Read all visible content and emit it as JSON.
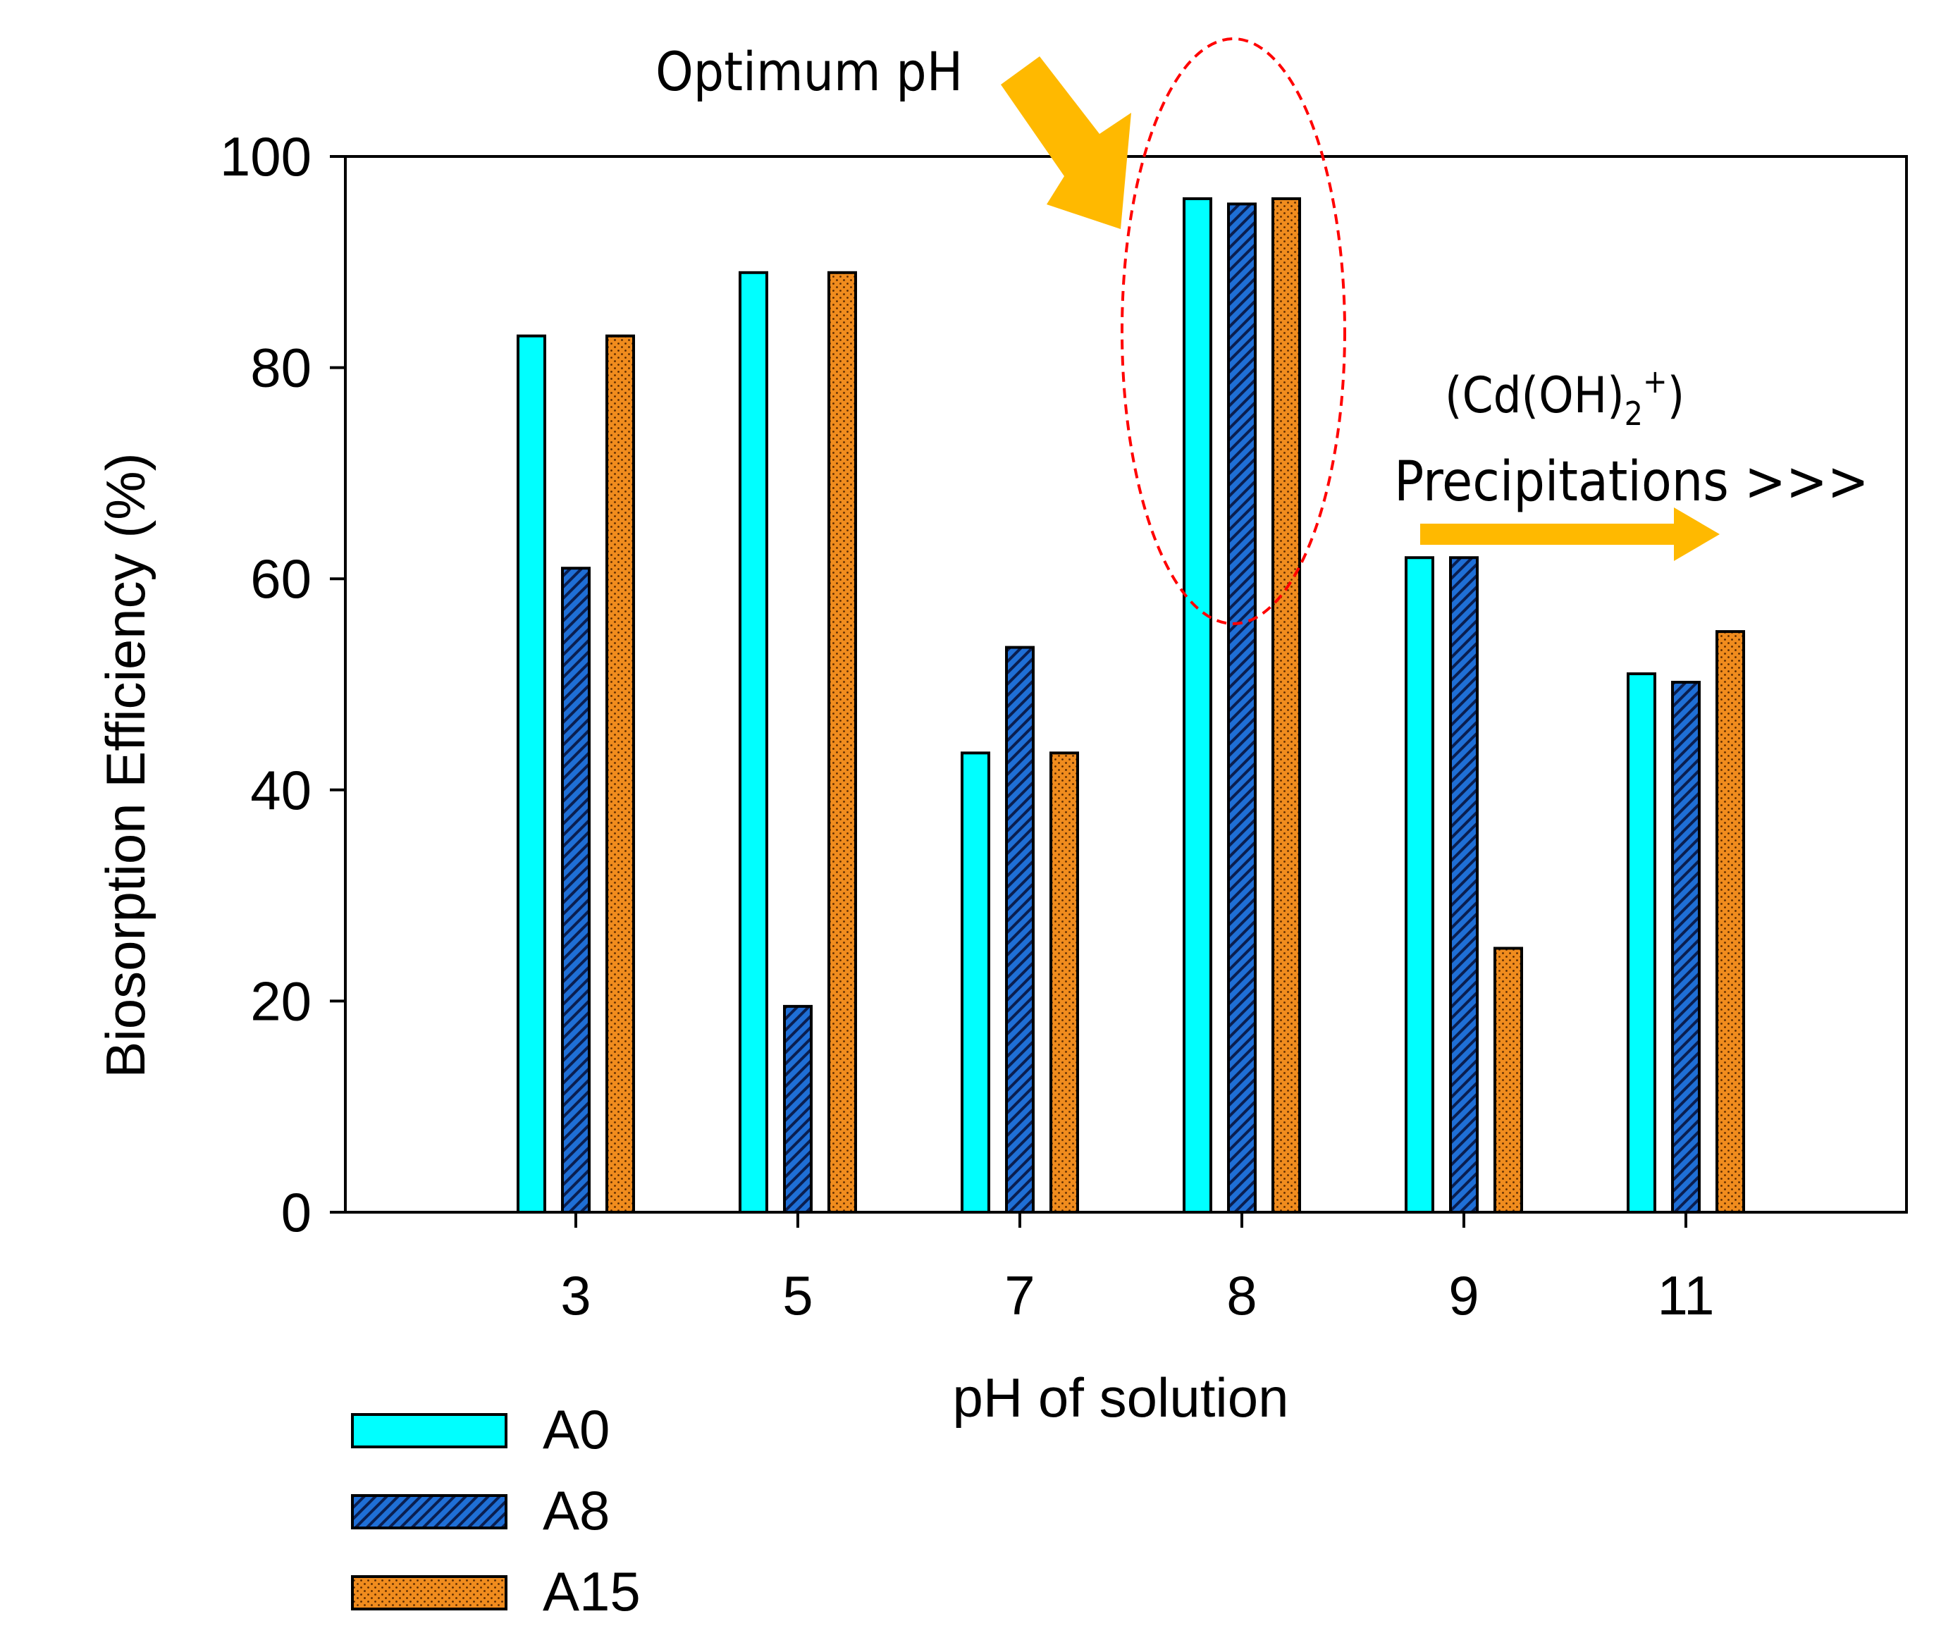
{
  "chart_data": {
    "type": "bar",
    "title": "",
    "xlabel": "pH of solution",
    "ylabel": "Biosorption Efficiency (%)",
    "ylim": [
      0,
      100
    ],
    "yticks": [
      0,
      20,
      40,
      60,
      80,
      100
    ],
    "categories": [
      "3",
      "5",
      "7",
      "8",
      "9",
      "11"
    ],
    "series": [
      {
        "name": "A0",
        "color": "#00ffff",
        "pattern": "solid",
        "values": [
          83,
          89,
          43.5,
          96,
          62,
          51
        ]
      },
      {
        "name": "A8",
        "color": "#1f6fd6",
        "pattern": "diagonal-hatch",
        "values": [
          61,
          19.5,
          53.5,
          95.5,
          62,
          50.2
        ]
      },
      {
        "name": "A15",
        "color": "#f08c1e",
        "pattern": "dots",
        "values": [
          83,
          89,
          43.5,
          96,
          25,
          55
        ]
      }
    ],
    "legend_position": "bottom-left",
    "annotations": {
      "optimum": "Optimum pH",
      "species_prefix": "(Cd(OH)",
      "species_sub": "2",
      "species_sup": "+",
      "species_suffix": ")",
      "precipitation": "Precipitations >>>",
      "arrow_color": "#ffb900",
      "ellipse_color": "#ff0000"
    }
  }
}
